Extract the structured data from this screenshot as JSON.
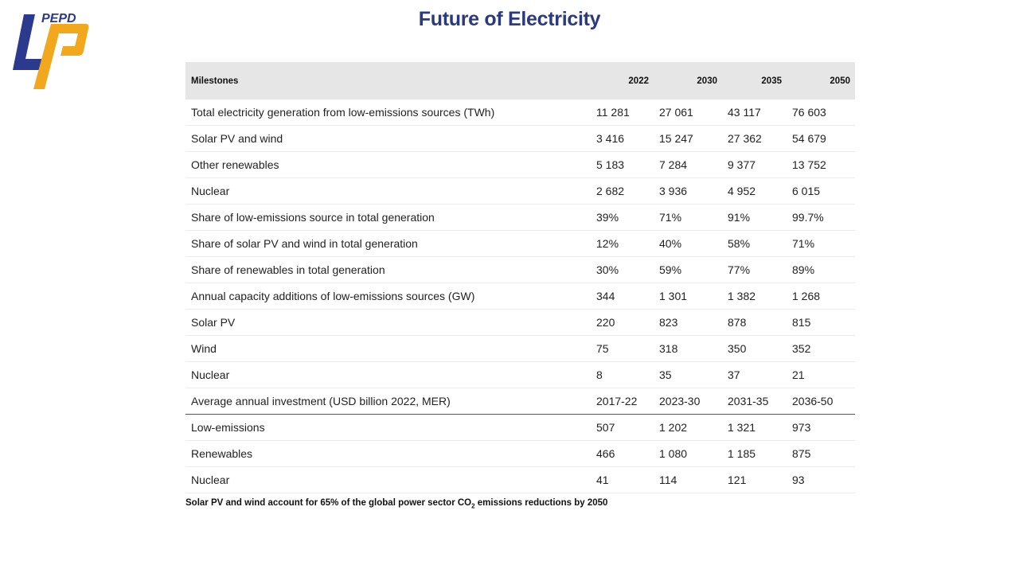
{
  "slide": {
    "title": "Future of Electricity",
    "logo_text": "PEPD",
    "colors": {
      "title": "#2b3a7e",
      "logo_blue": "#2b3a8c",
      "logo_orange": "#f2a81d",
      "header_bg": "#e6e6e6"
    }
  },
  "table": {
    "header": {
      "label": "Milestones",
      "years": [
        "2022",
        "2030",
        "2035",
        "2050"
      ]
    },
    "rows": [
      {
        "label": "Total electricity generation from low-emissions sources (TWh)",
        "values": [
          "11 281",
          "27 061",
          "43 117",
          "76 603"
        ]
      },
      {
        "label": "Solar PV and wind",
        "values": [
          "3 416",
          "15 247",
          "27 362",
          "54 679"
        ]
      },
      {
        "label": "Other renewables",
        "values": [
          "5 183",
          "7 284",
          "9 377",
          "13 752"
        ]
      },
      {
        "label": "Nuclear",
        "values": [
          "2 682",
          "3 936",
          "4 952",
          "6 015"
        ]
      },
      {
        "label": "Share of low-emissions source in total generation",
        "values": [
          "39%",
          "71%",
          "91%",
          "99.7%"
        ]
      },
      {
        "label": "Share of solar PV and wind in total generation",
        "values": [
          "12%",
          "40%",
          "58%",
          "71%"
        ]
      },
      {
        "label": "Share of renewables in total generation",
        "values": [
          "30%",
          "59%",
          "77%",
          "89%"
        ]
      },
      {
        "label": "Annual capacity additions of low-emissions sources (GW)",
        "values": [
          "344",
          "1 301",
          "1 382",
          "1 268"
        ]
      },
      {
        "label": "Solar PV",
        "values": [
          "220",
          "823",
          "878",
          "815"
        ]
      },
      {
        "label": "Wind",
        "values": [
          "75",
          "318",
          "350",
          "352"
        ]
      },
      {
        "label": "Nuclear",
        "values": [
          "8",
          "35",
          "37",
          "21"
        ]
      }
    ],
    "investment_header": {
      "label": "Average annual investment (USD billion 2022, MER)",
      "periods": [
        "2017-22",
        "2023-30",
        "2031-35",
        "2036-50"
      ]
    },
    "investment_rows": [
      {
        "label": "Low-emissions",
        "values": [
          "507",
          "1 202",
          "1 321",
          "973"
        ]
      },
      {
        "label": "Renewables",
        "values": [
          "466",
          "1 080",
          "1 185",
          "875"
        ]
      },
      {
        "label": "Nuclear",
        "values": [
          "41",
          "114",
          "121",
          "93"
        ]
      }
    ]
  },
  "footnote": {
    "before": "Solar PV and wind account for 65% of the global power sector CO",
    "subscript": "2",
    "after": " emissions reductions by 2050"
  }
}
